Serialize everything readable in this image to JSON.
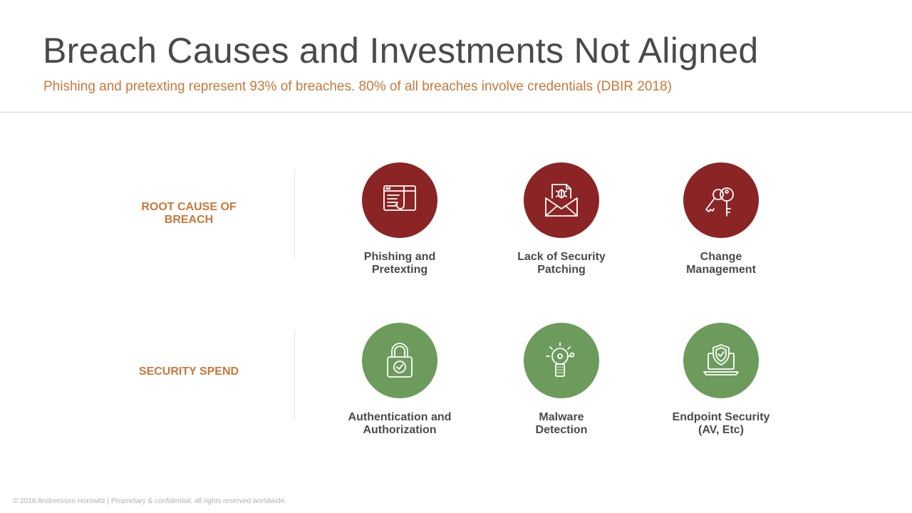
{
  "slide": {
    "title": "Breach Causes and Investments Not Aligned",
    "subtitle": "Phishing and pretexting represent 93% of breaches. 80% of all breaches involve credentials (DBIR 2018)",
    "footer": "© 2018 Andreessen Horowitz | Proprietary & confidential, all rights reserved worldwide."
  },
  "rows": [
    {
      "label": "ROOT CAUSE OF\nBREACH",
      "color": "#8b2424",
      "items": [
        {
          "label": "Phishing and\nPretexting",
          "icon": "phishing-hook-icon"
        },
        {
          "label": "Lack of Security\nPatching",
          "icon": "bug-envelope-icon"
        },
        {
          "label": "Change\nManagement",
          "icon": "keys-icon"
        }
      ]
    },
    {
      "label": "SECURITY SPEND",
      "color": "#6c9b5c",
      "items": [
        {
          "label": "Authentication and\nAuthorization",
          "icon": "padlock-check-icon"
        },
        {
          "label": "Malware\nDetection",
          "icon": "alarm-bell-icon"
        },
        {
          "label": "Endpoint Security\n(AV, Etc)",
          "icon": "laptop-shield-icon"
        }
      ]
    }
  ],
  "colors": {
    "accent": "#c8783a",
    "root_cause_red": "#8b2424",
    "spend_green": "#6c9b5c",
    "text": "#4a4a4a"
  }
}
